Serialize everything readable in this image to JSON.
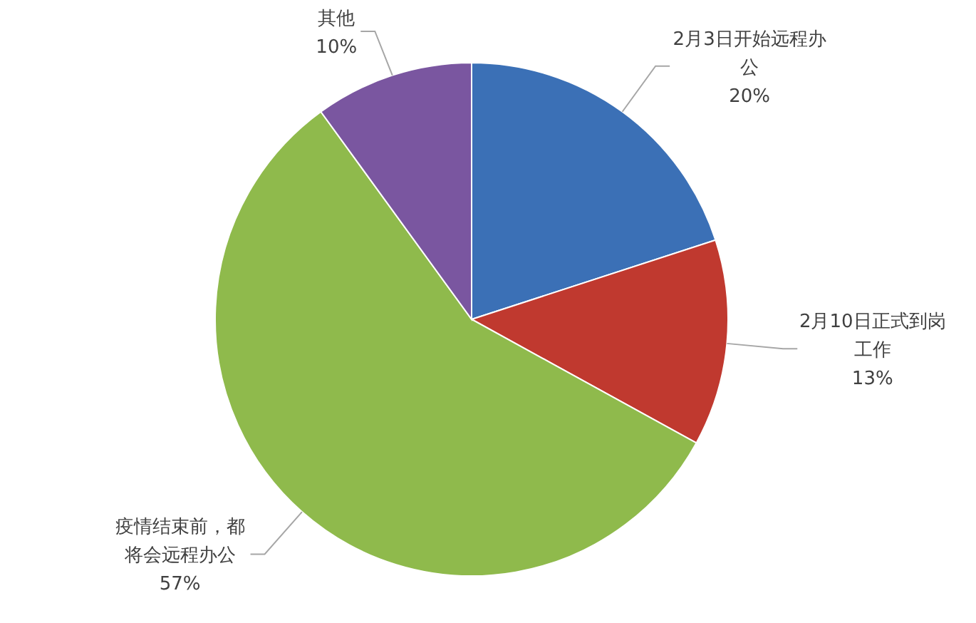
{
  "chart_data": {
    "type": "pie",
    "categories": [
      "2月3日开始远程办公",
      "2月10日正式到岗工作",
      "疫情结束前，都将会远程办公",
      "其他"
    ],
    "values": [
      20,
      13,
      57,
      10
    ],
    "value_labels": [
      "20%",
      "13%",
      "57%",
      "10%"
    ],
    "colors": [
      "#3b70b6",
      "#c0392f",
      "#8fba4c",
      "#7a56a0"
    ]
  }
}
